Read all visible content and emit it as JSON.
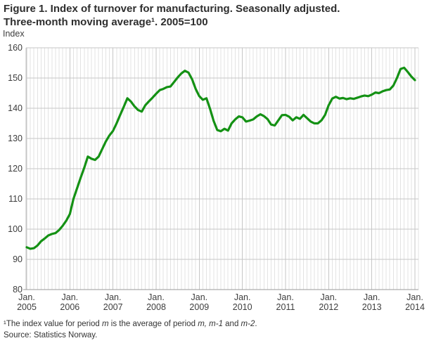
{
  "title": {
    "line1": "Figure 1. Index of turnover for manufacturing. Seasonally adjusted.",
    "line2": "Three-month moving average¹. 2005=100"
  },
  "y_axis_top_label": "Index",
  "footnote_segments": [
    {
      "text": "¹The index value for period ",
      "italic": false
    },
    {
      "text": "m",
      "italic": true
    },
    {
      "text": " is the average of period ",
      "italic": false
    },
    {
      "text": "m, m-1",
      "italic": true
    },
    {
      "text": " and ",
      "italic": false
    },
    {
      "text": "m-2",
      "italic": true
    },
    {
      "text": ".",
      "italic": false
    }
  ],
  "source": "Source: Statistics Norway.",
  "colors": {
    "line_green": "#149114",
    "title_text": "#2e2e2e",
    "axis_text": "#3d3d3d",
    "grid_minor": "#e3e3e3",
    "grid_major": "#c6c6c6",
    "axis_line": "#9a9a9a"
  },
  "chart_data": {
    "type": "line",
    "title": "Index of turnover for manufacturing. Seasonally adjusted. Three-month moving average. 2005=100",
    "xlabel": "",
    "ylabel": "Index",
    "ylim": [
      80,
      160
    ],
    "y_ticks": [
      80,
      90,
      100,
      110,
      120,
      130,
      140,
      150,
      160
    ],
    "grid": {
      "horizontal": true,
      "vertical_minor": "monthly",
      "vertical_major": "yearly"
    },
    "legend_position": "none",
    "x_start": "Jan 2005",
    "x_end": "Jan 2014",
    "frequency": "monthly",
    "x_ticks": [
      {
        "line1": "Jan.",
        "line2": "2005"
      },
      {
        "line1": "Jan.",
        "line2": "2006"
      },
      {
        "line1": "Jan.",
        "line2": "2007"
      },
      {
        "line1": "Jan.",
        "line2": "2008"
      },
      {
        "line1": "Jan.",
        "line2": "2009"
      },
      {
        "line1": "Jan.",
        "line2": "2010"
      },
      {
        "line1": "Jan.",
        "line2": "2011"
      },
      {
        "line1": "Jan.",
        "line2": "2012"
      },
      {
        "line1": "Jan.",
        "line2": "2013"
      },
      {
        "line1": "Jan.",
        "line2": "2014"
      }
    ],
    "series": [
      {
        "name": "Index of turnover, manufacturing",
        "color": "#149114",
        "values": [
          94.0,
          93.5,
          93.7,
          94.6,
          96.0,
          96.9,
          97.9,
          98.4,
          98.7,
          99.7,
          101.1,
          102.8,
          105.0,
          110.0,
          113.5,
          117.0,
          120.3,
          124.0,
          123.3,
          122.9,
          124.0,
          126.5,
          129.0,
          131.0,
          132.5,
          135.0,
          137.8,
          140.5,
          143.3,
          142.2,
          140.6,
          139.4,
          138.9,
          141.0,
          142.3,
          143.5,
          144.8,
          146.0,
          146.4,
          147.0,
          147.2,
          148.7,
          150.2,
          151.5,
          152.4,
          151.8,
          149.6,
          146.4,
          144.0,
          142.8,
          143.3,
          139.8,
          135.8,
          132.8,
          132.4,
          133.2,
          132.6,
          135.0,
          136.3,
          137.3,
          137.0,
          135.6,
          135.9,
          136.3,
          137.3,
          138.0,
          137.4,
          136.4,
          134.6,
          134.3,
          136.0,
          137.7,
          137.8,
          137.2,
          136.0,
          137.0,
          136.5,
          137.8,
          136.7,
          135.6,
          135.0,
          135.0,
          136.0,
          137.8,
          141.0,
          143.2,
          143.8,
          143.2,
          143.4,
          143.0,
          143.3,
          143.1,
          143.5,
          143.9,
          144.2,
          144.0,
          144.5,
          145.2,
          145.0,
          145.6,
          146.0,
          146.2,
          147.5,
          150.0,
          153.0,
          153.4,
          152.0,
          150.5,
          149.3
        ]
      }
    ]
  }
}
